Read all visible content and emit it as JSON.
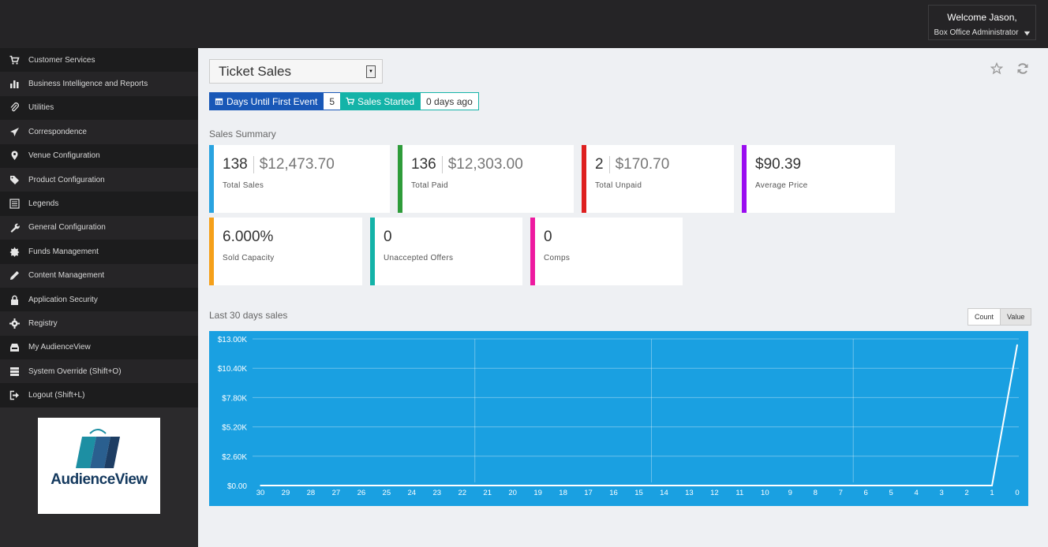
{
  "header": {
    "welcome": "Welcome Jason,",
    "role": "Box Office Administrator"
  },
  "sidebar": {
    "items": [
      {
        "label": "Customer Services",
        "icon": "cart-icon"
      },
      {
        "label": "Business Intelligence and Reports",
        "icon": "bar-chart-icon"
      },
      {
        "label": "Utilities",
        "icon": "paperclip-icon"
      },
      {
        "label": "Correspondence",
        "icon": "paper-plane-icon"
      },
      {
        "label": "Venue Configuration",
        "icon": "map-marker-icon"
      },
      {
        "label": "Product Configuration",
        "icon": "tags-icon"
      },
      {
        "label": "Legends",
        "icon": "list-icon"
      },
      {
        "label": "General Configuration",
        "icon": "wrench-icon"
      },
      {
        "label": "Funds Management",
        "icon": "certificate-icon"
      },
      {
        "label": "Content Management",
        "icon": "pencil-icon"
      },
      {
        "label": "Application Security",
        "icon": "lock-icon"
      },
      {
        "label": "Registry",
        "icon": "gear-icon"
      },
      {
        "label": "My AudienceView",
        "icon": "inbox-icon"
      },
      {
        "label": "System Override (Shift+O)",
        "icon": "server-icon"
      },
      {
        "label": "Logout (Shift+L)",
        "icon": "logout-icon"
      }
    ],
    "logo_text": "AudienceView"
  },
  "report": {
    "title": "Ticket Sales"
  },
  "pills": {
    "days_label": "Days Until First Event",
    "days_value": "5",
    "started_label": "Sales Started",
    "started_value": "0 days ago"
  },
  "summary": {
    "title": "Sales Summary",
    "cards": [
      {
        "count": "138",
        "value": "$12,473.70",
        "label": "Total Sales",
        "color": "#29a3e0"
      },
      {
        "count": "136",
        "value": "$12,303.00",
        "label": "Total Paid",
        "color": "#2e9c3a"
      },
      {
        "count": "2",
        "value": "$170.70",
        "label": "Total Unpaid",
        "color": "#de1f1f"
      },
      {
        "count": "$90.39",
        "value": "",
        "label": "Average Price",
        "color": "#9a0cf0"
      },
      {
        "count": "6.000%",
        "value": "",
        "label": "Sold Capacity",
        "color": "#f5a01a"
      },
      {
        "count": "0",
        "value": "",
        "label": "Unaccepted Offers",
        "color": "#14b3a8"
      },
      {
        "count": "0",
        "value": "",
        "label": "Comps",
        "color": "#ee1aa0"
      }
    ]
  },
  "chart_section": {
    "title": "Last 30 days sales",
    "toggle_count": "Count",
    "toggle_value": "Value"
  },
  "colors": {
    "pill_blue": "#1958b7",
    "pill_teal": "#14b3a8",
    "chart_bg": "#1aa0e1"
  },
  "chart_data": {
    "type": "line",
    "title": "",
    "xlabel": "",
    "ylabel": "",
    "x": [
      30,
      29,
      28,
      27,
      26,
      25,
      24,
      23,
      22,
      21,
      20,
      19,
      18,
      17,
      16,
      15,
      14,
      13,
      12,
      11,
      10,
      9,
      8,
      7,
      6,
      5,
      4,
      3,
      2,
      1,
      0
    ],
    "y_ticks": [
      "$0.00",
      "$2.60K",
      "$5.20K",
      "$7.80K",
      "$10.40K",
      "$13.00K"
    ],
    "ylim": [
      0,
      13000
    ],
    "series": [
      {
        "values": [
          0,
          0,
          0,
          0,
          0,
          0,
          0,
          0,
          0,
          0,
          0,
          0,
          0,
          0,
          0,
          0,
          0,
          0,
          0,
          0,
          0,
          0,
          0,
          0,
          0,
          0,
          0,
          0,
          0,
          0,
          12473.7
        ]
      }
    ],
    "grid": true
  }
}
